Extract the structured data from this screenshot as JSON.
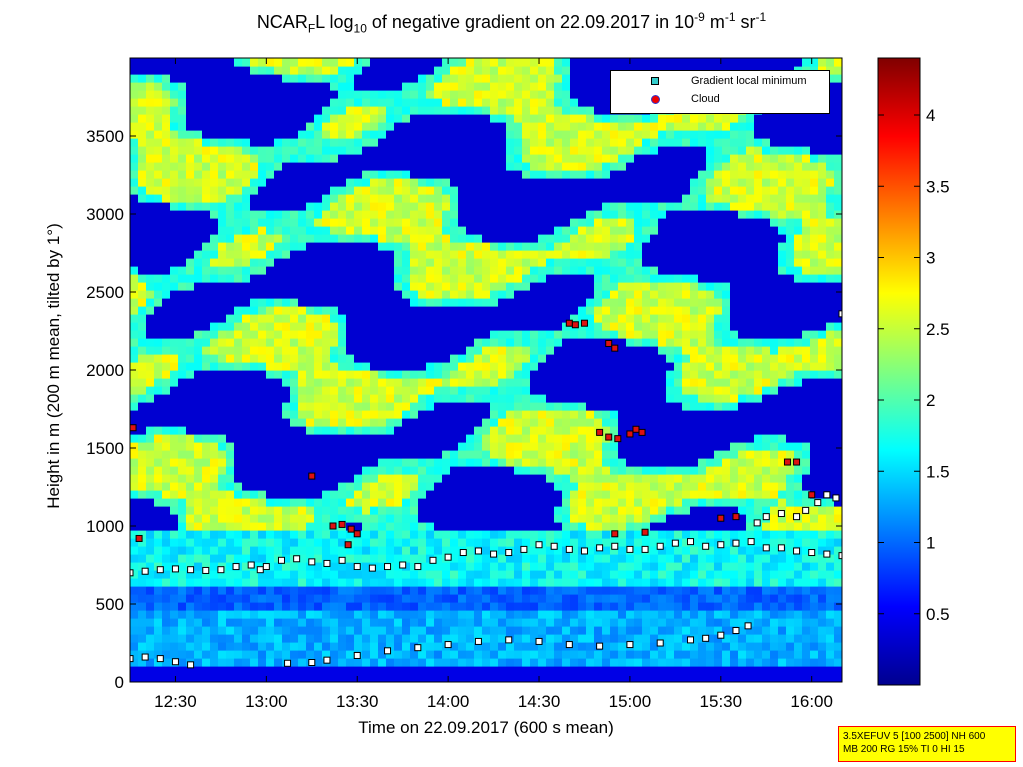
{
  "title": {
    "main": "NCAR",
    "sub1": "F",
    "part2": "L log",
    "sub2": "10",
    "part3": " of negative gradient on 22.09.2017 in 10",
    "sup1": "-9",
    "part4": " m",
    "sup2": "-1",
    "part5": " sr",
    "sup3": "-1"
  },
  "chart_data": {
    "type": "heatmap",
    "xlabel": "Time on 22.09.2017 (600 s mean)",
    "ylabel": "Height in m (200 m mean, tilted by 1°)",
    "xlim_minutes": [
      735,
      970
    ],
    "ylim": [
      0,
      4000
    ],
    "x_ticks": [
      "12:30",
      "13:00",
      "13:30",
      "14:00",
      "14:30",
      "15:00",
      "15:30",
      "16:00"
    ],
    "x_tick_minutes": [
      750,
      780,
      810,
      840,
      870,
      900,
      930,
      960
    ],
    "y_ticks": [
      0,
      500,
      1000,
      1500,
      2000,
      2500,
      3000,
      3500
    ],
    "colorbar": {
      "range": [
        0,
        4.4
      ],
      "ticks": [
        "0.5",
        "1",
        "1.5",
        "2",
        "2.5",
        "3",
        "3.5",
        "4"
      ],
      "tick_values": [
        0.5,
        1,
        1.5,
        2,
        2.5,
        3,
        3.5,
        4
      ]
    },
    "legend": {
      "placement": "top-right",
      "entries": [
        "Gradient local minimum",
        "Cloud"
      ]
    },
    "series": [
      {
        "name": "Gradient local minimum",
        "points": [
          [
            735,
            700
          ],
          [
            740,
            710
          ],
          [
            745,
            720
          ],
          [
            750,
            725
          ],
          [
            755,
            720
          ],
          [
            760,
            715
          ],
          [
            765,
            720
          ],
          [
            770,
            740
          ],
          [
            775,
            750
          ],
          [
            778,
            720
          ],
          [
            780,
            740
          ],
          [
            785,
            780
          ],
          [
            790,
            790
          ],
          [
            795,
            770
          ],
          [
            800,
            760
          ],
          [
            805,
            780
          ],
          [
            810,
            740
          ],
          [
            815,
            730
          ],
          [
            820,
            740
          ],
          [
            825,
            750
          ],
          [
            830,
            740
          ],
          [
            835,
            780
          ],
          [
            840,
            800
          ],
          [
            845,
            830
          ],
          [
            850,
            840
          ],
          [
            855,
            820
          ],
          [
            860,
            830
          ],
          [
            865,
            850
          ],
          [
            870,
            880
          ],
          [
            875,
            870
          ],
          [
            880,
            850
          ],
          [
            885,
            840
          ],
          [
            890,
            860
          ],
          [
            895,
            870
          ],
          [
            900,
            850
          ],
          [
            905,
            850
          ],
          [
            910,
            870
          ],
          [
            915,
            890
          ],
          [
            920,
            900
          ],
          [
            925,
            870
          ],
          [
            930,
            880
          ],
          [
            935,
            890
          ],
          [
            940,
            900
          ],
          [
            945,
            860
          ],
          [
            950,
            860
          ],
          [
            955,
            840
          ],
          [
            960,
            830
          ],
          [
            965,
            820
          ],
          [
            970,
            810
          ],
          [
            735,
            150
          ],
          [
            740,
            160
          ],
          [
            745,
            150
          ],
          [
            750,
            130
          ],
          [
            755,
            110
          ],
          [
            787,
            120
          ],
          [
            795,
            125
          ],
          [
            800,
            140
          ],
          [
            810,
            170
          ],
          [
            820,
            200
          ],
          [
            830,
            220
          ],
          [
            840,
            240
          ],
          [
            850,
            260
          ],
          [
            860,
            270
          ],
          [
            870,
            260
          ],
          [
            880,
            240
          ],
          [
            890,
            230
          ],
          [
            900,
            240
          ],
          [
            910,
            250
          ],
          [
            920,
            270
          ],
          [
            925,
            280
          ],
          [
            930,
            300
          ],
          [
            935,
            330
          ],
          [
            939,
            360
          ],
          [
            942,
            1020
          ],
          [
            945,
            1060
          ],
          [
            950,
            1080
          ],
          [
            955,
            1060
          ],
          [
            958,
            1100
          ],
          [
            962,
            1150
          ],
          [
            965,
            1200
          ],
          [
            968,
            1180
          ],
          [
            970,
            2360
          ]
        ]
      },
      {
        "name": "Cloud",
        "points": [
          [
            736,
            1630
          ],
          [
            738,
            920
          ],
          [
            795,
            1320
          ],
          [
            802,
            1000
          ],
          [
            805,
            1010
          ],
          [
            808,
            980
          ],
          [
            810,
            950
          ],
          [
            807,
            880
          ],
          [
            880,
            2300
          ],
          [
            882,
            2290
          ],
          [
            885,
            2300
          ],
          [
            893,
            2170
          ],
          [
            895,
            2140
          ],
          [
            890,
            1600
          ],
          [
            893,
            1570
          ],
          [
            896,
            1560
          ],
          [
            900,
            1590
          ],
          [
            902,
            1620
          ],
          [
            904,
            1600
          ],
          [
            895,
            950
          ],
          [
            905,
            960
          ],
          [
            935,
            1060
          ],
          [
            930,
            1050
          ],
          [
            952,
            1410
          ],
          [
            955,
            1410
          ],
          [
            960,
            1200
          ]
        ]
      }
    ]
  },
  "infobox": {
    "line1": "3.5XEFUV 5 [100 2500] NH 600",
    "line2": "MB 200 RG 15% TI 0 HI 15"
  }
}
